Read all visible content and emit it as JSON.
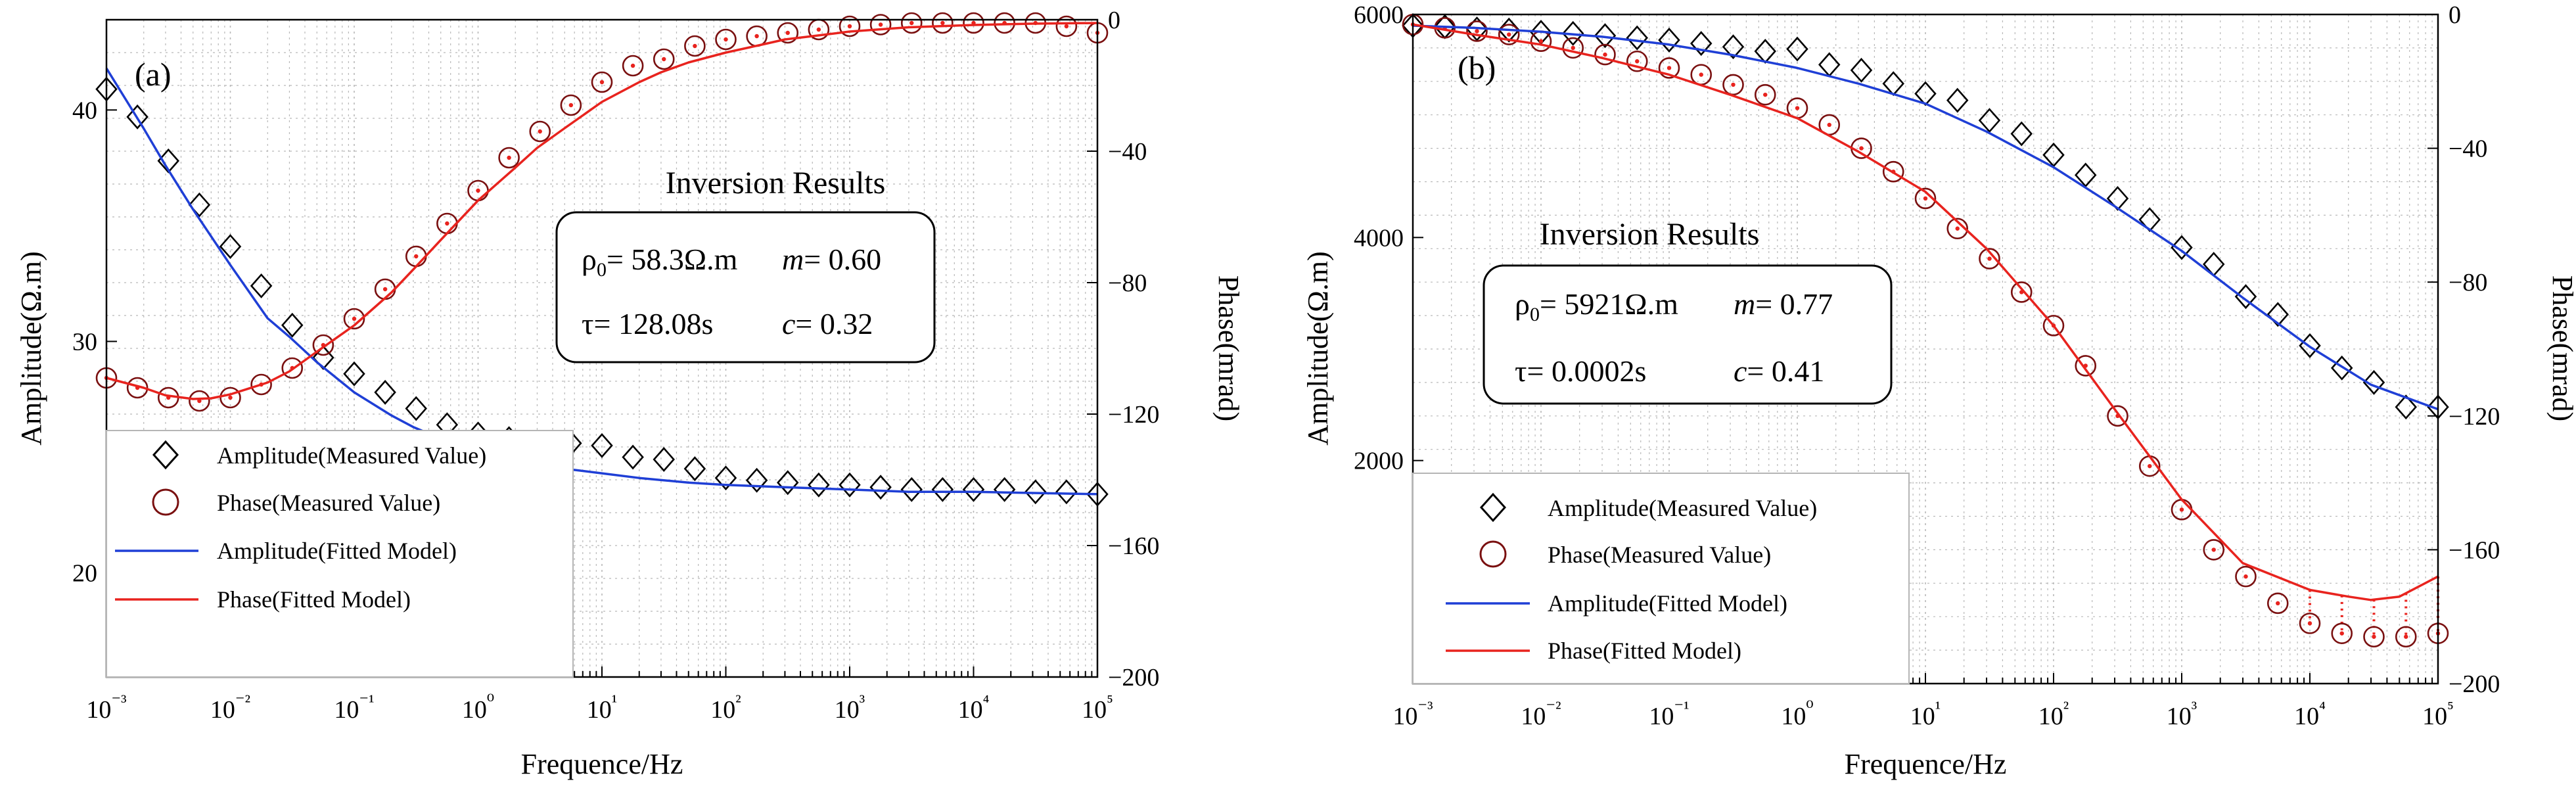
{
  "charts": [
    {
      "panel_label": "(a)",
      "inversion": {
        "title": "Inversion Results",
        "rho_symbol": "ρ",
        "rho_sub": "0",
        "rho_value": "= 58.3Ω.m",
        "m_label": "m",
        "m_value": "= 0.60",
        "tau_label": "τ",
        "tau_value": "= 128.08s",
        "c_label": "c",
        "c_value": "= 0.32"
      }
    },
    {
      "panel_label": "(b)",
      "inversion": {
        "title": "Inversion Results",
        "rho_symbol": "ρ",
        "rho_sub": "0",
        "rho_value": "= 5921Ω.m",
        "m_label": "m",
        "m_value": "= 0.77",
        "tau_label": "τ",
        "tau_value": "= 0.0002s",
        "c_label": "c",
        "c_value": "= 0.41"
      }
    }
  ],
  "legend": [
    {
      "label": "Amplitude(Measured Value)",
      "marker": "diamond"
    },
    {
      "label": "Phase(Measured Value)",
      "marker": "circle"
    },
    {
      "label": "Amplitude(Fitted Model)",
      "marker": "line-blue"
    },
    {
      "label": "Phase(Fitted Model)",
      "marker": "line-red"
    }
  ],
  "colors": {
    "amplitude": "#1f3fd6",
    "phase": "#e8231e",
    "marker": "#000000",
    "grid": "#b8b8b8"
  },
  "chart_data": [
    {
      "type": "scatter",
      "title": "(a)",
      "xlabel": "Frequence/Hz",
      "ylabel": "Amplitude(Ω.m)",
      "y2label": "Phase(mrad)",
      "xscale": "log",
      "xlim": [
        0.001,
        100000
      ],
      "ylim": [
        15.5,
        43.9
      ],
      "y2lim": [
        -200,
        0
      ],
      "x_ticks": [
        "10^-3",
        "10^-2",
        "10^-1",
        "10^0",
        "10^1",
        "10^2",
        "10^3",
        "10^4",
        "10^5"
      ],
      "y_ticks": [
        20,
        30,
        40
      ],
      "y2_ticks": [
        0,
        -40,
        -80,
        -120,
        -160,
        -200
      ],
      "legend_position": "bottom-left",
      "series": [
        {
          "name": "Amplitude(Measured Value)",
          "axis": "left",
          "marker": "diamond",
          "x": [
            0.001,
            0.001778,
            0.003162,
            0.005623,
            0.01,
            0.01778,
            0.03162,
            0.05623,
            0.1,
            0.1778,
            0.3162,
            0.5623,
            1,
            1.778,
            3.162,
            5.623,
            10,
            17.78,
            31.62,
            56.23,
            100,
            177.8,
            316.2,
            562.3,
            1000,
            1778,
            3162,
            5623,
            10000,
            17780,
            31620,
            56230,
            100000
          ],
          "y": [
            40.9,
            39.7,
            37.8,
            35.9,
            34.1,
            32.4,
            30.7,
            29.3,
            28.6,
            27.8,
            27.1,
            26.4,
            26.0,
            25.8,
            25.6,
            25.6,
            25.5,
            25.0,
            24.9,
            24.5,
            24.1,
            24.0,
            23.9,
            23.8,
            23.8,
            23.7,
            23.6,
            23.6,
            23.6,
            23.6,
            23.5,
            23.5,
            23.4
          ]
        },
        {
          "name": "Phase(Measured Value)",
          "axis": "right",
          "marker": "circle",
          "x": [
            0.001,
            0.001778,
            0.003162,
            0.005623,
            0.01,
            0.01778,
            0.03162,
            0.05623,
            0.1,
            0.1778,
            0.3162,
            0.5623,
            1,
            1.778,
            3.162,
            5.623,
            10,
            17.78,
            31.62,
            56.23,
            100,
            177.8,
            316.2,
            562.3,
            1000,
            1778,
            3162,
            5623,
            10000,
            17780,
            31620,
            56230,
            100000
          ],
          "y": [
            -109,
            -112,
            -115,
            -116,
            -115,
            -111,
            -106,
            -99,
            -91,
            -82,
            -72,
            -62,
            -52,
            -42,
            -34,
            -26,
            -19,
            -14,
            -12,
            -8,
            -6,
            -5,
            -4,
            -3,
            -2,
            -1.5,
            -1,
            -1,
            -1,
            -1,
            -1,
            -2,
            -4
          ]
        },
        {
          "name": "Amplitude(Fitted Model)",
          "axis": "left",
          "type": "line",
          "x": [
            0.001,
            0.002,
            0.003,
            0.005,
            0.01,
            0.02,
            0.03,
            0.05,
            0.1,
            0.2,
            0.3,
            0.5,
            1,
            2,
            3,
            5,
            10,
            20,
            50,
            100,
            300,
            1000,
            3000,
            10000,
            100000
          ],
          "y": [
            41.8,
            39.2,
            37.6,
            35.7,
            33.3,
            31.0,
            30.2,
            29.1,
            27.8,
            26.8,
            26.3,
            25.8,
            25.3,
            24.9,
            24.7,
            24.5,
            24.3,
            24.1,
            23.9,
            23.8,
            23.7,
            23.6,
            23.5,
            23.5,
            23.4
          ]
        },
        {
          "name": "Phase(Fitted Model)",
          "axis": "right",
          "type": "line",
          "x": [
            0.001,
            0.002,
            0.003,
            0.005,
            0.007,
            0.01,
            0.02,
            0.03,
            0.05,
            0.1,
            0.2,
            0.3,
            0.5,
            1,
            2,
            3,
            5,
            10,
            20,
            30,
            50,
            100,
            200,
            300,
            500,
            1000,
            3000,
            10000,
            30000,
            100000
          ],
          "y": [
            -109,
            -112,
            -114.3,
            -115.4,
            -115.2,
            -114,
            -110.4,
            -107,
            -101,
            -93,
            -83,
            -76,
            -67,
            -55,
            -45,
            -39,
            -33,
            -25,
            -19,
            -16,
            -13,
            -10,
            -7.5,
            -6,
            -5,
            -3.6,
            -2.3,
            -1.6,
            -1.2,
            -1
          ]
        }
      ]
    },
    {
      "type": "scatter",
      "title": "(b)",
      "xlabel": "Frequence/Hz",
      "ylabel": "Amplitude(Ω.m)",
      "y2label": "Phase(mrad)",
      "xscale": "log",
      "xlim": [
        0.001,
        100000
      ],
      "ylim": [
        0,
        6000
      ],
      "y2lim": [
        -200,
        0
      ],
      "x_ticks": [
        "10^-3",
        "10^-2",
        "10^-1",
        "10^0",
        "10^1",
        "10^2",
        "10^3",
        "10^4",
        "10^5"
      ],
      "y_ticks": [
        2000,
        4000,
        6000
      ],
      "y2_ticks": [
        0,
        -40,
        -80,
        -120,
        -160,
        -200
      ],
      "legend_position": "bottom-left",
      "series": [
        {
          "name": "Amplitude(Measured Value)",
          "axis": "left",
          "marker": "diamond",
          "x": [
            0.001,
            0.001778,
            0.003162,
            0.005623,
            0.01,
            0.01778,
            0.03162,
            0.05623,
            0.1,
            0.1778,
            0.3162,
            0.5623,
            1,
            1.778,
            3.162,
            5.623,
            10,
            17.78,
            31.62,
            56.23,
            100,
            177.8,
            316.2,
            562.3,
            1000,
            1778,
            3162,
            5623,
            10000,
            17780,
            31620,
            56230,
            100000
          ],
          "y": [
            5900,
            5890,
            5870,
            5860,
            5840,
            5830,
            5810,
            5790,
            5770,
            5740,
            5710,
            5670,
            5690,
            5550,
            5500,
            5380,
            5290,
            5230,
            5050,
            4930,
            4740,
            4560,
            4350,
            4160,
            3910,
            3760,
            3470,
            3310,
            3030,
            2830,
            2700,
            2480,
            2480
          ]
        },
        {
          "name": "Phase(Measured Value)",
          "axis": "right",
          "marker": "circle",
          "x": [
            0.001,
            0.001778,
            0.003162,
            0.005623,
            0.01,
            0.01778,
            0.03162,
            0.05623,
            0.1,
            0.1778,
            0.3162,
            0.5623,
            1,
            1.778,
            3.162,
            5.623,
            10,
            17.78,
            31.62,
            56.23,
            100,
            177.8,
            316.2,
            562.3,
            1000,
            1778,
            3162,
            5623,
            10000,
            17780,
            31620,
            56230,
            100000
          ],
          "y": [
            -3,
            -4,
            -5,
            -6,
            -8,
            -10,
            -12,
            -14,
            -16,
            -18,
            -21,
            -24,
            -28,
            -33,
            -40,
            -47,
            -55,
            -64,
            -73,
            -83,
            -93,
            -105,
            -120,
            -135,
            -148,
            -160,
            -168,
            -176,
            -182,
            -185,
            -186,
            -186,
            -185
          ]
        },
        {
          "name": "Amplitude(Fitted Model)",
          "axis": "left",
          "type": "line",
          "x": [
            0.001,
            0.003,
            0.01,
            0.03,
            0.1,
            0.3,
            1,
            3,
            10,
            30,
            100,
            300,
            1000,
            3000,
            10000,
            30000,
            100000
          ],
          "y": [
            5900,
            5880,
            5845,
            5800,
            5730,
            5640,
            5520,
            5380,
            5200,
            4950,
            4630,
            4280,
            3880,
            3460,
            3020,
            2680,
            2460
          ]
        },
        {
          "name": "Phase(Fitted Model)",
          "axis": "right",
          "type": "line",
          "x": [
            0.001,
            0.003,
            0.01,
            0.03,
            0.1,
            0.3,
            1,
            3,
            10,
            30,
            100,
            300,
            1000,
            3000,
            10000,
            20000,
            30000,
            50000,
            100000
          ],
          "y": [
            -3,
            -6,
            -9,
            -13,
            -18,
            -24,
            -31,
            -41,
            -53,
            -70,
            -93,
            -118,
            -145,
            -164,
            -172,
            -174,
            -175,
            -174,
            -168
          ]
        }
      ]
    }
  ]
}
